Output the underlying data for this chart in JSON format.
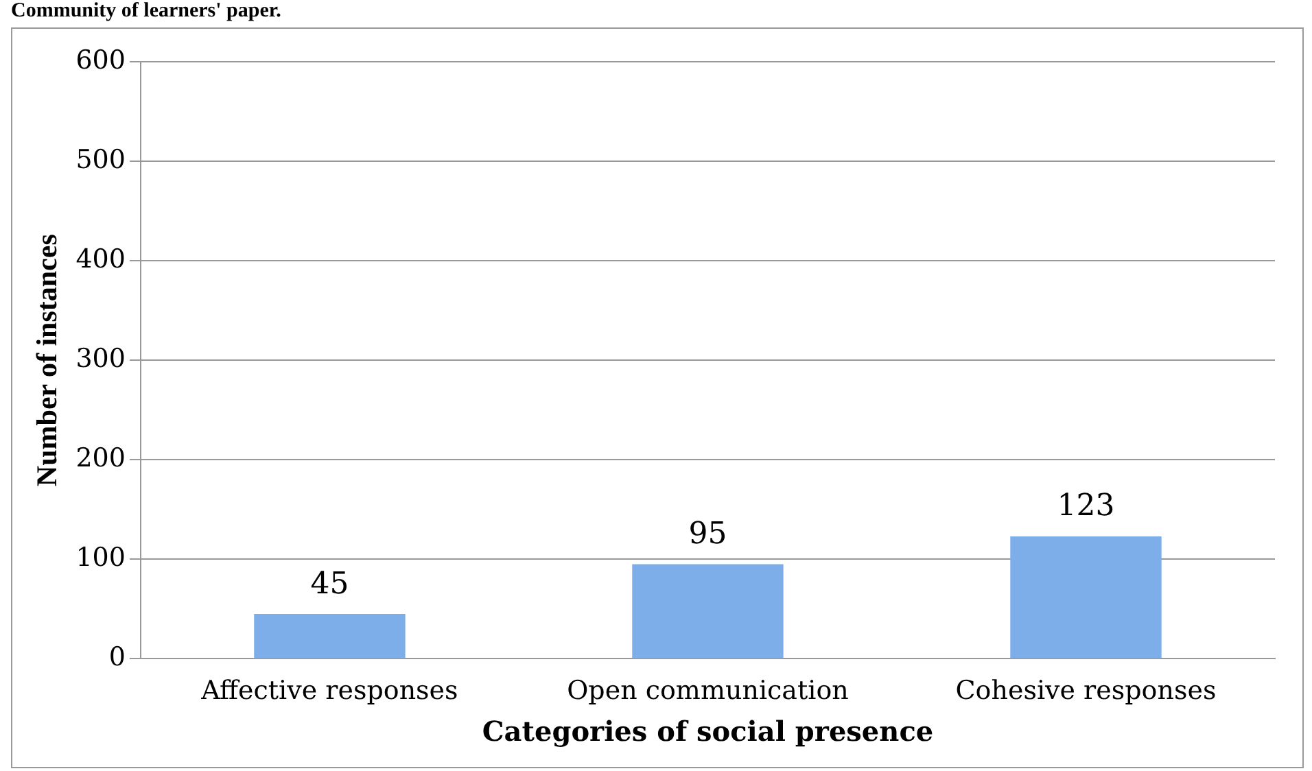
{
  "chart_data": {
    "type": "bar",
    "categories": [
      "Affective responses",
      "Open communication",
      "Cohesive responses"
    ],
    "values": [
      45,
      95,
      123
    ],
    "color": "#7eaeea",
    "xlabel": "Categories of social presence",
    "ylabel": "Number of instances",
    "ylim": [
      0,
      600
    ],
    "yticks": [
      0,
      100,
      200,
      300,
      400,
      500,
      600
    ],
    "grid": "y",
    "data_labels": true,
    "legend": false,
    "annotations": [
      "Community of learners' paper."
    ]
  }
}
